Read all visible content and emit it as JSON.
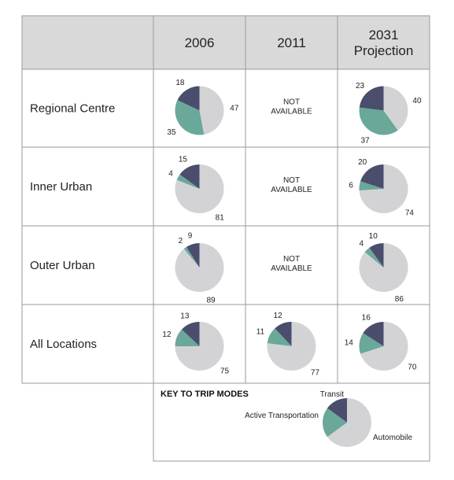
{
  "chart_data": {
    "type": "pie",
    "columns": [
      "2006",
      "2011",
      "2031 Projection"
    ],
    "column_lines": [
      [
        "2006"
      ],
      [
        "2011"
      ],
      [
        "2031",
        "Projection"
      ]
    ],
    "rows": [
      "Regional Centre",
      "Inner Urban",
      "Outer Urban",
      "All Locations"
    ],
    "not_available_lines": [
      "NOT",
      "AVAILABLE"
    ],
    "modes": [
      "Transit",
      "Active Transportation",
      "Automobile"
    ],
    "colors": {
      "Transit": "#4a4e6c",
      "Active Transportation": "#6aa89a",
      "Automobile": "#d3d3d6",
      "header_bg": "#d9d9d9",
      "border": "#9a9a9a"
    },
    "cells": [
      [
        {
          "Transit": 18,
          "Active Transportation": 35,
          "Automobile": 47
        },
        null,
        {
          "Transit": 23,
          "Active Transportation": 37,
          "Automobile": 40
        }
      ],
      [
        {
          "Transit": 15,
          "Active Transportation": 4,
          "Automobile": 81
        },
        null,
        {
          "Transit": 20,
          "Active Transportation": 6,
          "Automobile": 74
        }
      ],
      [
        {
          "Transit": 9,
          "Active Transportation": 2,
          "Automobile": 89
        },
        null,
        {
          "Transit": 10,
          "Active Transportation": 4,
          "Automobile": 86
        }
      ],
      [
        {
          "Transit": 13,
          "Active Transportation": 12,
          "Automobile": 75
        },
        {
          "Transit": 12,
          "Active Transportation": 11,
          "Automobile": 77
        },
        {
          "Transit": 16,
          "Active Transportation": 14,
          "Automobile": 70
        }
      ]
    ],
    "key": {
      "title": "KEY TO TRIP MODES",
      "labels": [
        "Transit",
        "Active Transportation",
        "Automobile"
      ],
      "values": {
        "Transit": 15,
        "Active Transportation": 20,
        "Automobile": 65
      }
    }
  }
}
